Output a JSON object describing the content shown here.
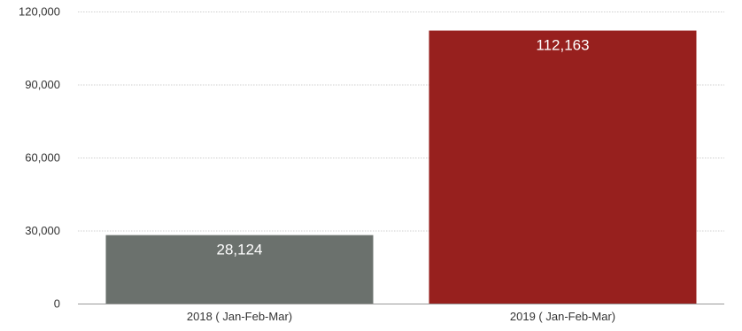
{
  "chart_data": {
    "type": "bar",
    "title": "",
    "xlabel": "",
    "ylabel": "",
    "categories": [
      "2018 ( Jan-Feb-Mar)",
      "2019 ( Jan-Feb-Mar)"
    ],
    "values": [
      28124,
      112163
    ],
    "value_labels": [
      "28,124",
      "112,163"
    ],
    "colors": [
      "#6b716d",
      "#97201e"
    ],
    "ylim": [
      0,
      120000
    ],
    "yticks": [
      0,
      30000,
      60000,
      90000,
      120000
    ],
    "ytick_labels": [
      "0",
      "30,000",
      "60,000",
      "90,000",
      "120,000"
    ],
    "grid": true,
    "legend": "none"
  }
}
